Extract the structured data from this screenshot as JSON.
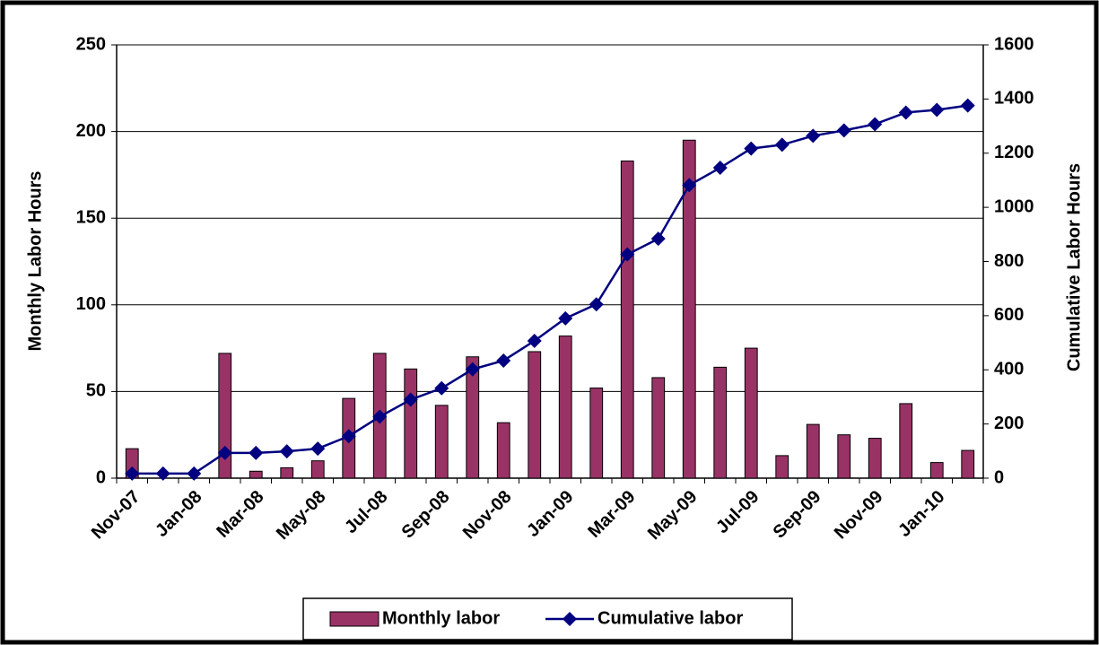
{
  "chart_data": {
    "type": "bar_line",
    "y_label": "Monthly Labor Hours",
    "y2_label": "Cumulative Labor Hours",
    "categories": [
      "Nov-07",
      null,
      "Jan-08",
      null,
      "Mar-08",
      null,
      "May-08",
      null,
      "Jul-08",
      null,
      "Sep-08",
      null,
      "Nov-08",
      null,
      "Jan-09",
      null,
      "Mar-09",
      null,
      "May-09",
      null,
      "Jul-09",
      null,
      "Sep-09",
      null,
      "Nov-09",
      null,
      "Jan-10",
      null
    ],
    "series": [
      {
        "name": "Monthly labor",
        "type": "bar",
        "color": "#993366",
        "values": [
          17,
          0,
          0,
          72,
          4,
          6,
          10,
          46,
          72,
          63,
          42,
          70,
          32,
          73,
          82,
          52,
          183,
          58,
          195,
          64,
          75,
          13,
          31,
          25,
          23,
          43,
          9,
          16
        ]
      },
      {
        "name": "Cumulative labor",
        "type": "line",
        "axis": "y2",
        "color": "#000080",
        "values": [
          17,
          17,
          17,
          93,
          93,
          99,
          109,
          155,
          227,
          290,
          332,
          402,
          434,
          507,
          590,
          642,
          826,
          884,
          1082,
          1146,
          1217,
          1231,
          1264,
          1284,
          1307,
          1350,
          1360,
          1376
        ]
      }
    ],
    "ylim": [
      0,
      250
    ],
    "yticks": [
      0,
      50,
      100,
      150,
      200,
      250
    ],
    "y2lim": [
      0,
      1600
    ],
    "y2ticks": [
      0,
      200,
      400,
      600,
      800,
      1000,
      1200,
      1400,
      1600
    ],
    "grid": true,
    "legend": "bottom"
  }
}
